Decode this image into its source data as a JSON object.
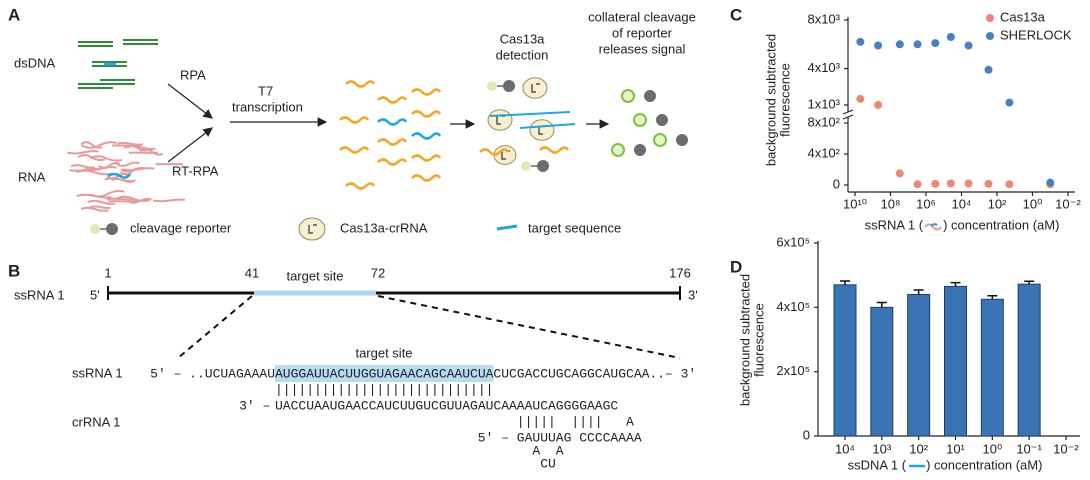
{
  "panels": {
    "a": "A",
    "b": "B",
    "c": "C",
    "d": "D"
  },
  "diagram_a": {
    "dsdna": "dsDNA",
    "rna": "RNA",
    "rpa": "RPA",
    "rt_rpa": "RT-RPA",
    "t7": [
      "T7",
      "transcription"
    ],
    "detection": [
      "Cas13a",
      "detection"
    ],
    "signal": [
      "collateral cleavage",
      "of reporter",
      "releases signal"
    ],
    "legend": [
      "cleavage reporter",
      "Cas13a-crRNA",
      "target sequence"
    ]
  },
  "diagram_b": {
    "name": "ssRNA 1",
    "five": "5'",
    "three": "3'",
    "positions": [
      "1",
      "41",
      "72",
      "176"
    ],
    "target_label": "target site",
    "seq_name": "ssRNA 1",
    "seq_target_label": "target site",
    "ssrna": [
      "5' – ..UCUAGAAAU",
      "AUGGAUUACUUGGUAGAACAGCAAUCUA",
      "CUCGACCUGCAGGCAUGCAA..– 3'"
    ],
    "pairs": "||||||||||||||||||||||||||||",
    "crrna_name": "crRNA 1",
    "crrna": [
      "3' –",
      "UACCUAAUGAACCAUCUUGUCGUUAGAU",
      "CAAAAUCAGGGGAAGC"
    ],
    "hairpin": [
      "|||||  ||||",
      "A",
      "5' – GAUUUAG CCCCAAAA",
      "A  A",
      "CU"
    ]
  },
  "chart_data": [
    {
      "type": "scatter",
      "xlabel": [
        "ssRNA 1 (",
        ") concentration (aM)"
      ],
      "ylabel": [
        "background subtracted",
        "fluorescence"
      ],
      "xscale": "log",
      "xlim": [
        10000000000,
        0.01
      ],
      "xticks": [
        {
          "value": 10000000000,
          "label": "10¹⁰"
        },
        {
          "value": 100000000,
          "label": "10⁸"
        },
        {
          "value": 1000000,
          "label": "10⁶"
        },
        {
          "value": 10000,
          "label": "10⁴"
        },
        {
          "value": 100,
          "label": "10²"
        },
        {
          "value": 1,
          "label": "10⁰"
        },
        {
          "value": 0.01,
          "label": "10⁻²"
        }
      ],
      "ylim": [
        0,
        8000
      ],
      "ybreak": [
        800,
        1000
      ],
      "yticks": [
        0,
        {
          "value": 400,
          "label": "4x10²"
        },
        {
          "value": 800,
          "label": "8x10²"
        },
        {
          "value": 1000,
          "label": "1x10³"
        },
        {
          "value": 4000,
          "label": "4x10³"
        },
        {
          "value": 8000,
          "label": "8x10³"
        }
      ],
      "legend": "upper right",
      "series": [
        {
          "name": "Cas13a",
          "color": "#ee8872",
          "x": [
            5000000000,
            500000000,
            30000000,
            3000000,
            300000,
            40000,
            4000,
            300,
            20,
            0.1
          ],
          "values": [
            1500,
            1000,
            150,
            10,
            15,
            20,
            20,
            15,
            10,
            10
          ]
        },
        {
          "name": "SHERLOCK",
          "color": "#4a80c0",
          "x": [
            5000000000,
            500000000,
            30000000,
            3000000,
            300000,
            40000,
            4000,
            300,
            20,
            0.1
          ],
          "values": [
            6200,
            5900,
            6000,
            6000,
            6100,
            6600,
            5900,
            3900,
            1200,
            30
          ]
        }
      ]
    },
    {
      "type": "bar",
      "xlabel": [
        "ssDNA 1 (",
        ") concentration (aM)"
      ],
      "ylabel": [
        "background subtracted",
        "fluorescence"
      ],
      "categories": [
        "10⁴",
        "10³",
        "10²",
        "10¹",
        "10⁰",
        "10⁻¹",
        "10⁻²"
      ],
      "values": [
        470000,
        400000,
        440000,
        465000,
        425000,
        472000,
        null
      ],
      "errors": [
        12000,
        15000,
        14000,
        12000,
        11000,
        9000,
        null
      ],
      "color": "#3b74b4",
      "ylim": [
        0,
        600000
      ],
      "yticks": [
        0,
        {
          "value": 200000,
          "label": "2x10⁵"
        },
        {
          "value": 400000,
          "label": "4x10⁵"
        },
        {
          "value": 600000,
          "label": "6x10⁵"
        }
      ]
    }
  ]
}
